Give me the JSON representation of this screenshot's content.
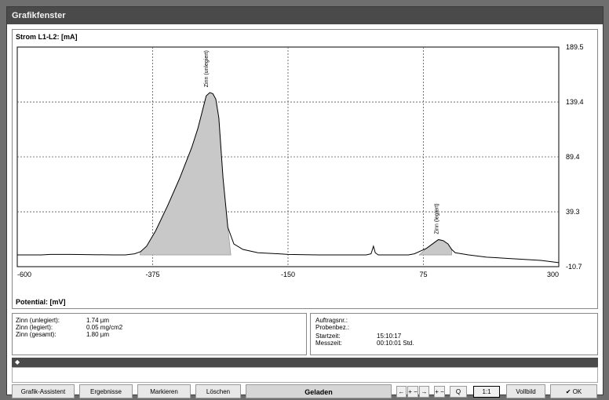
{
  "window": {
    "title": "Grafikfenster"
  },
  "chart_data": {
    "type": "area",
    "ylabel": "Strom L1-L2: [mA]",
    "xlabel": "Potential: [mV]",
    "xlim": [
      -600,
      300
    ],
    "ylim": [
      -10.7,
      189.5
    ],
    "x_ticks": [
      {
        "value": -600,
        "label": "-600"
      },
      {
        "value": -375,
        "label": "-375"
      },
      {
        "value": -150,
        "label": "-150"
      },
      {
        "value": 75,
        "label": "75"
      },
      {
        "value": 300,
        "label": "300"
      }
    ],
    "y_ticks": [
      {
        "value": 189.5,
        "label": "189.5"
      },
      {
        "value": 139.4,
        "label": "139.4"
      },
      {
        "value": 89.4,
        "label": "89.4"
      },
      {
        "value": 39.3,
        "label": "39.3"
      },
      {
        "value": -10.7,
        "label": "-10.7"
      }
    ],
    "grid": true,
    "series": [
      {
        "x": [
          -600,
          -560,
          -545,
          -510,
          -440,
          -420,
          -405,
          -395,
          -385,
          -370,
          -350,
          -330,
          -310,
          -300,
          -292,
          -286,
          -280,
          -275,
          -270,
          -265,
          -258,
          -250,
          -240,
          -225,
          -200,
          -165,
          -150,
          -100,
          -60,
          -20,
          -12,
          -8,
          -5,
          0,
          20,
          50,
          60,
          80,
          90,
          100,
          108,
          116,
          122,
          128,
          150,
          180,
          210,
          240,
          270,
          300
        ],
        "y": [
          0,
          0,
          0.5,
          0.5,
          0,
          0,
          1,
          3,
          8,
          22,
          45,
          70,
          98,
          115,
          132,
          145,
          148,
          147,
          142,
          125,
          70,
          25,
          10,
          5,
          2,
          1,
          0.5,
          0,
          0,
          0,
          1,
          8,
          2,
          0,
          0,
          0,
          1,
          6,
          10,
          14,
          13,
          10,
          5,
          2,
          0,
          -2,
          -3,
          -4,
          -5,
          -7
        ]
      }
    ],
    "fills": [
      {
        "from": -396,
        "to": -245
      },
      {
        "from": 68,
        "to": 122
      }
    ],
    "annotations": [
      {
        "text": "Zinn (unlegiert)",
        "x": -283,
        "y": 150
      },
      {
        "text": "Zinn (legiert)",
        "x": 100,
        "y": 16
      }
    ]
  },
  "results": {
    "rows": [
      {
        "label": "Zinn (unlegiert):",
        "value": "1.74 µm"
      },
      {
        "label": "Zinn (legiert):",
        "value": "0.05 mg/cm2"
      },
      {
        "label": "Zinn (gesamt):",
        "value": "1.80 µm"
      }
    ]
  },
  "meta": {
    "rows": [
      {
        "label": "Auftragsnr.:",
        "value": ""
      },
      {
        "label": "Probenbez.:",
        "value": ""
      },
      {
        "label": "Startzeit:",
        "value": "15:10:17"
      },
      {
        "label": "Messzeit:",
        "value": "00:10:01 Std."
      }
    ]
  },
  "darkbar": {
    "marker": "◆"
  },
  "toolbar": {
    "wizard_label": "Grafik-Assistent",
    "results_label": "Ergebnisse",
    "mark_label": "Markieren",
    "delete_label": "Löschen",
    "status_label": "Geladen",
    "zoom_x_left": "←",
    "zoom_x_spin": "+ −",
    "zoom_x_right": "→",
    "zoom_y_spin": "+ −",
    "zoom_icon": "Q",
    "ratio_label": "1:1",
    "full_label": "Vollbild",
    "ok_check": "✔",
    "ok_label": "OK"
  }
}
